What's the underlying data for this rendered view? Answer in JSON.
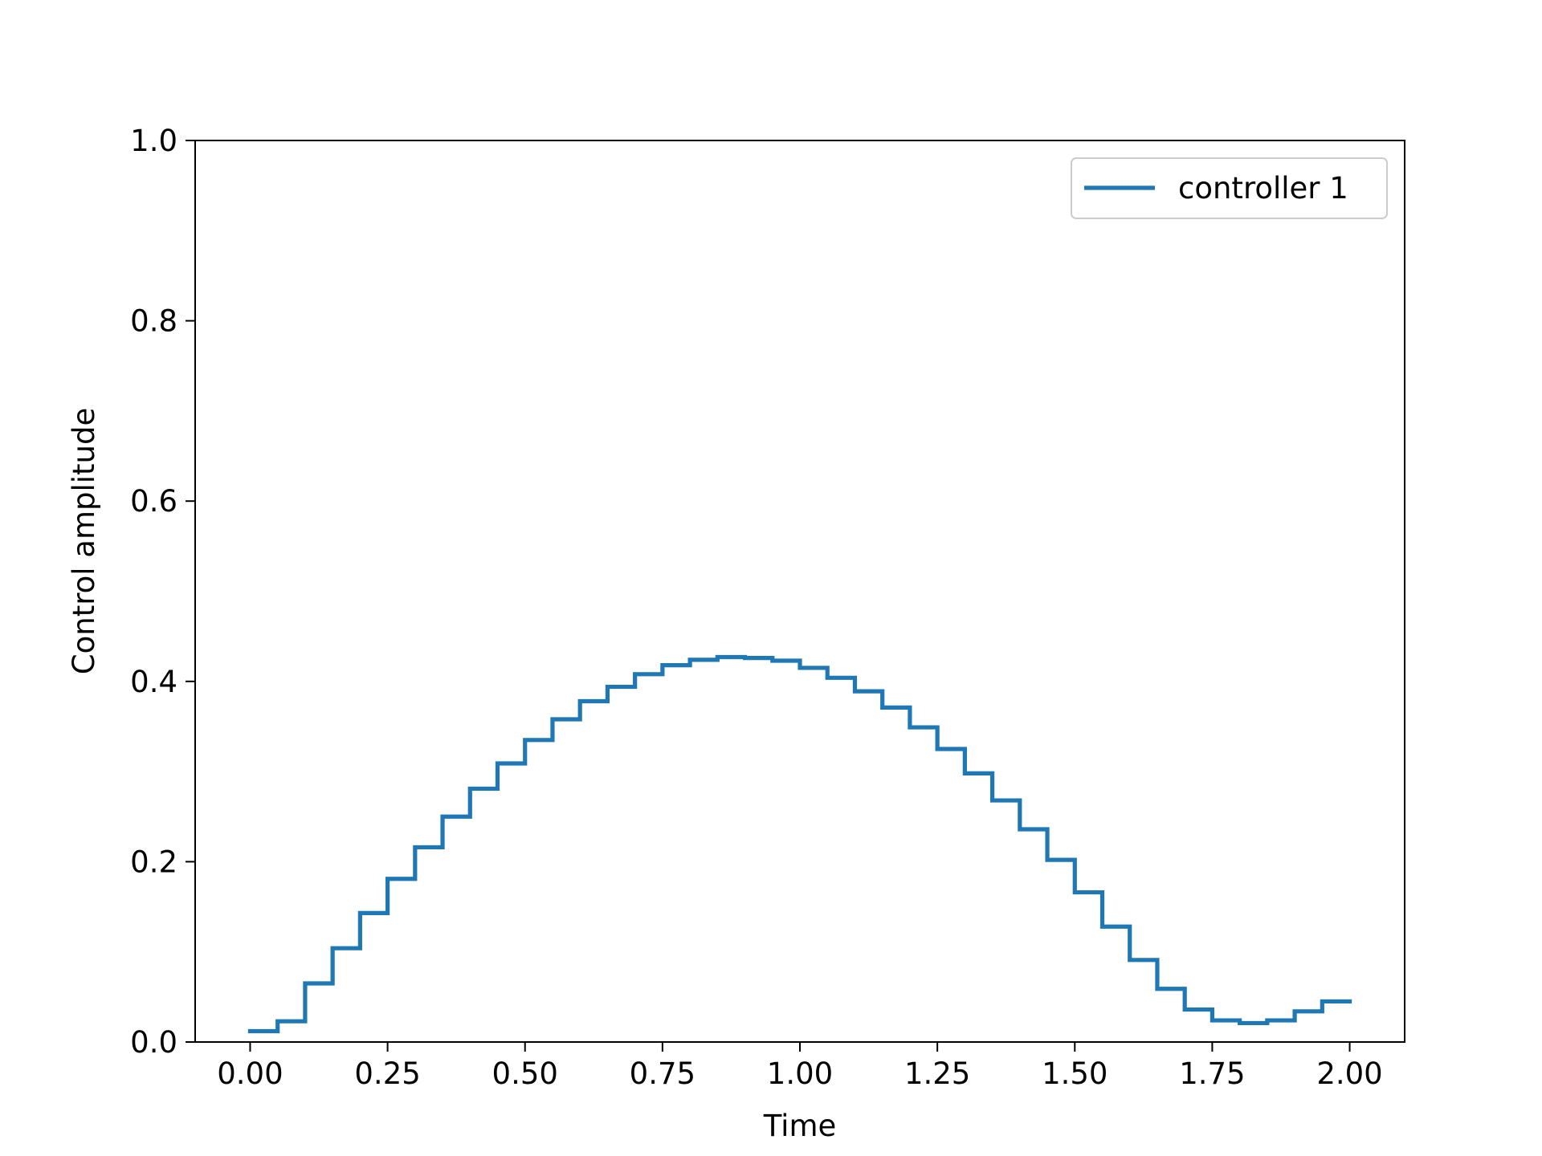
{
  "chart_data": {
    "type": "line",
    "step": "post",
    "title": "",
    "xlabel": "Time",
    "ylabel": "Control amplitude",
    "xlim": [
      -0.1,
      2.1
    ],
    "ylim": [
      0.0,
      1.0
    ],
    "grid": false,
    "legend_position": "top-right",
    "x_ticks": [
      0.0,
      0.25,
      0.5,
      0.75,
      1.0,
      1.25,
      1.5,
      1.75,
      2.0
    ],
    "x_tick_labels": [
      "0.00",
      "0.25",
      "0.50",
      "0.75",
      "1.00",
      "1.25",
      "1.50",
      "1.75",
      "2.00"
    ],
    "y_ticks": [
      0.0,
      0.2,
      0.4,
      0.6,
      0.8,
      1.0
    ],
    "y_tick_labels": [
      "0.0",
      "0.2",
      "0.4",
      "0.6",
      "0.8",
      "1.0"
    ],
    "x": [
      0.0,
      0.05,
      0.1,
      0.15,
      0.2,
      0.25,
      0.3,
      0.35,
      0.4,
      0.45,
      0.5,
      0.55,
      0.6,
      0.65,
      0.7,
      0.75,
      0.8,
      0.85,
      0.9,
      0.95,
      1.0,
      1.05,
      1.1,
      1.15,
      1.2,
      1.25,
      1.3,
      1.35,
      1.4,
      1.45,
      1.5,
      1.55,
      1.6,
      1.65,
      1.7,
      1.75,
      1.8,
      1.85,
      1.9,
      1.95,
      2.0
    ],
    "series": [
      {
        "name": "controller 1",
        "color": "#1f77b4",
        "values": [
          0.012,
          0.023,
          0.065,
          0.104,
          0.143,
          0.181,
          0.216,
          0.25,
          0.281,
          0.309,
          0.335,
          0.358,
          0.378,
          0.394,
          0.408,
          0.418,
          0.424,
          0.427,
          0.426,
          0.423,
          0.415,
          0.404,
          0.389,
          0.371,
          0.349,
          0.325,
          0.298,
          0.268,
          0.236,
          0.202,
          0.166,
          0.128,
          0.091,
          0.059,
          0.036,
          0.024,
          0.021,
          0.024,
          0.034,
          0.045,
          0.045
        ]
      }
    ]
  }
}
